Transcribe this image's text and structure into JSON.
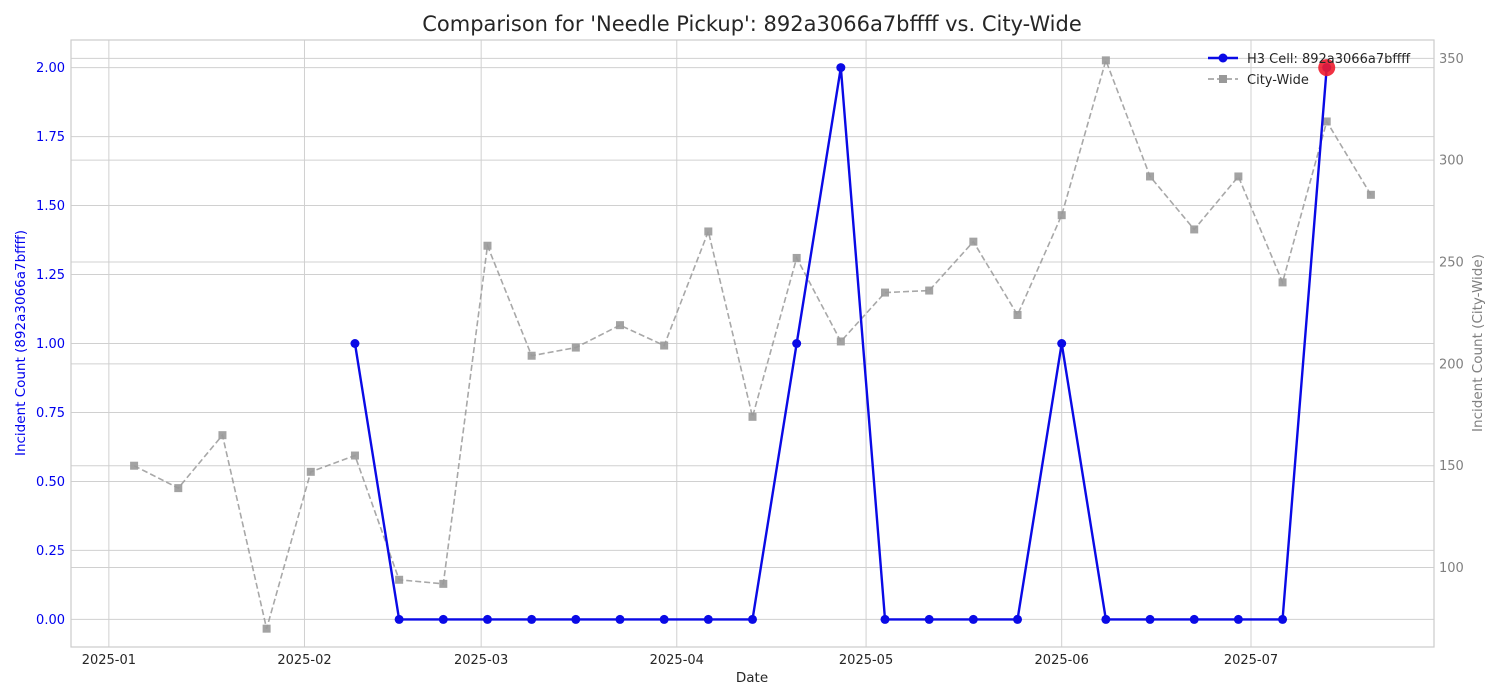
{
  "chart_data": {
    "type": "line",
    "title": "Comparison for 'Needle Pickup': 892a3066a7bffff vs. City-Wide",
    "xlabel": "Date",
    "ylabel_left": "Incident Count (892a3066a7bffff)",
    "ylabel_right": "Incident Count (City-Wide)",
    "x_axis_type": "date",
    "x_range": [
      "2024-12-26",
      "2025-07-30"
    ],
    "x_ticks": [
      "2025-01-01",
      "2025-02-01",
      "2025-03-01",
      "2025-04-01",
      "2025-05-01",
      "2025-06-01",
      "2025-07-01"
    ],
    "x_tick_labels": [
      "2025-01",
      "2025-02",
      "2025-03",
      "2025-04",
      "2025-05",
      "2025-06",
      "2025-07"
    ],
    "ylim_left": [
      -0.1,
      2.1
    ],
    "yticks_left": [
      0.0,
      0.25,
      0.5,
      0.75,
      1.0,
      1.25,
      1.5,
      1.75,
      2.0
    ],
    "ytick_labels_left": [
      "0.00",
      "0.25",
      "0.50",
      "0.75",
      "1.00",
      "1.25",
      "1.50",
      "1.75",
      "2.00"
    ],
    "ylim_right": [
      61,
      359
    ],
    "yticks_right": [
      100,
      150,
      200,
      250,
      300,
      350
    ],
    "ytick_labels_right": [
      "100",
      "150",
      "200",
      "250",
      "300",
      "350"
    ],
    "grid": true,
    "legend_position": "top-right",
    "colors": {
      "h3": "#0a0ae6",
      "city": "#999999",
      "highlight": "#ee1c2e",
      "left_axis": "#0000ee",
      "right_axis": "#808080"
    },
    "series": [
      {
        "name": "H3 Cell: 892a3066a7bffff",
        "axis": "left",
        "style": "solid-circle",
        "x": [
          "2025-02-09",
          "2025-02-16",
          "2025-02-23",
          "2025-03-02",
          "2025-03-09",
          "2025-03-16",
          "2025-03-23",
          "2025-03-30",
          "2025-04-06",
          "2025-04-13",
          "2025-04-20",
          "2025-04-27",
          "2025-05-04",
          "2025-05-11",
          "2025-05-18",
          "2025-05-25",
          "2025-06-01",
          "2025-06-08",
          "2025-06-15",
          "2025-06-22",
          "2025-06-29",
          "2025-07-06",
          "2025-07-13"
        ],
        "y": [
          1,
          0,
          0,
          0,
          0,
          0,
          0,
          0,
          0,
          0,
          1,
          2,
          0,
          0,
          0,
          0,
          1,
          0,
          0,
          0,
          0,
          0,
          2
        ]
      },
      {
        "name": "City-Wide",
        "axis": "right",
        "style": "dashed-square",
        "x": [
          "2025-01-05",
          "2025-01-12",
          "2025-01-19",
          "2025-01-26",
          "2025-02-02",
          "2025-02-09",
          "2025-02-16",
          "2025-02-23",
          "2025-03-02",
          "2025-03-09",
          "2025-03-16",
          "2025-03-23",
          "2025-03-30",
          "2025-04-06",
          "2025-04-13",
          "2025-04-20",
          "2025-04-27",
          "2025-05-04",
          "2025-05-11",
          "2025-05-18",
          "2025-05-25",
          "2025-06-01",
          "2025-06-08",
          "2025-06-15",
          "2025-06-22",
          "2025-06-29",
          "2025-07-06",
          "2025-07-13",
          "2025-07-20"
        ],
        "y": [
          150,
          139,
          165,
          70,
          147,
          155,
          94,
          92,
          258,
          204,
          208,
          219,
          209,
          265,
          174,
          252,
          211,
          235,
          236,
          260,
          224,
          273,
          349,
          292,
          266,
          292,
          240,
          319,
          283
        ]
      }
    ],
    "highlight_point": {
      "series": "H3 Cell: 892a3066a7bffff",
      "x": "2025-07-13",
      "y": 2
    }
  }
}
